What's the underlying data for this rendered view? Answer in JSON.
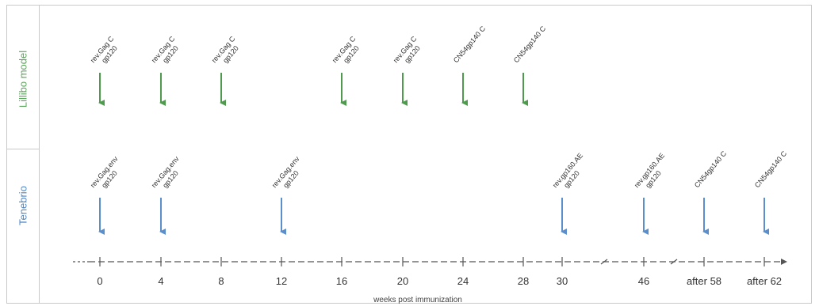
{
  "groups": [
    {
      "id": "top",
      "label": "Lillibo model",
      "color": "#4f9a4f",
      "events": [
        {
          "week": 0,
          "text": [
            "rev.Gag C",
            "gp120"
          ]
        },
        {
          "week": 4,
          "text": [
            "rev.Gag C",
            "gp120"
          ]
        },
        {
          "week": 8,
          "text": [
            "rev.Gag C",
            "gp120"
          ]
        },
        {
          "week": 16,
          "text": [
            "rev.Gag C",
            "gp120"
          ]
        },
        {
          "week": 20,
          "text": [
            "rev.Gag C",
            "gp120"
          ]
        },
        {
          "week": 24,
          "text": [
            "CN54gp140 C"
          ]
        },
        {
          "week": 28,
          "text": [
            "CN54gp140 C"
          ]
        }
      ]
    },
    {
      "id": "bottom",
      "label": "Tenebrio",
      "color": "#5b8fcb",
      "events": [
        {
          "week": 0,
          "text": [
            "rev.Gag.env",
            "gp120"
          ]
        },
        {
          "week": 4,
          "text": [
            "rev.Gag.env",
            "gp120"
          ]
        },
        {
          "week": 12,
          "text": [
            "rev.Gag.env",
            "gp120"
          ]
        },
        {
          "week": 30,
          "text": [
            "rev.gp160.AE",
            "gp120"
          ]
        },
        {
          "week": 46,
          "text": [
            "rev.gp160.AE",
            "gp120"
          ]
        },
        {
          "week": "after 58",
          "text": [
            "CN54gp140 C"
          ]
        },
        {
          "week": "after 62",
          "text": [
            "CN54gp140 C"
          ]
        }
      ]
    }
  ],
  "axis": {
    "ticks": [
      "0",
      "4",
      "8",
      "12",
      "16",
      "20",
      "24",
      "28",
      "30",
      "46",
      "after 58",
      "after 62"
    ],
    "label": "weeks post immunization"
  }
}
